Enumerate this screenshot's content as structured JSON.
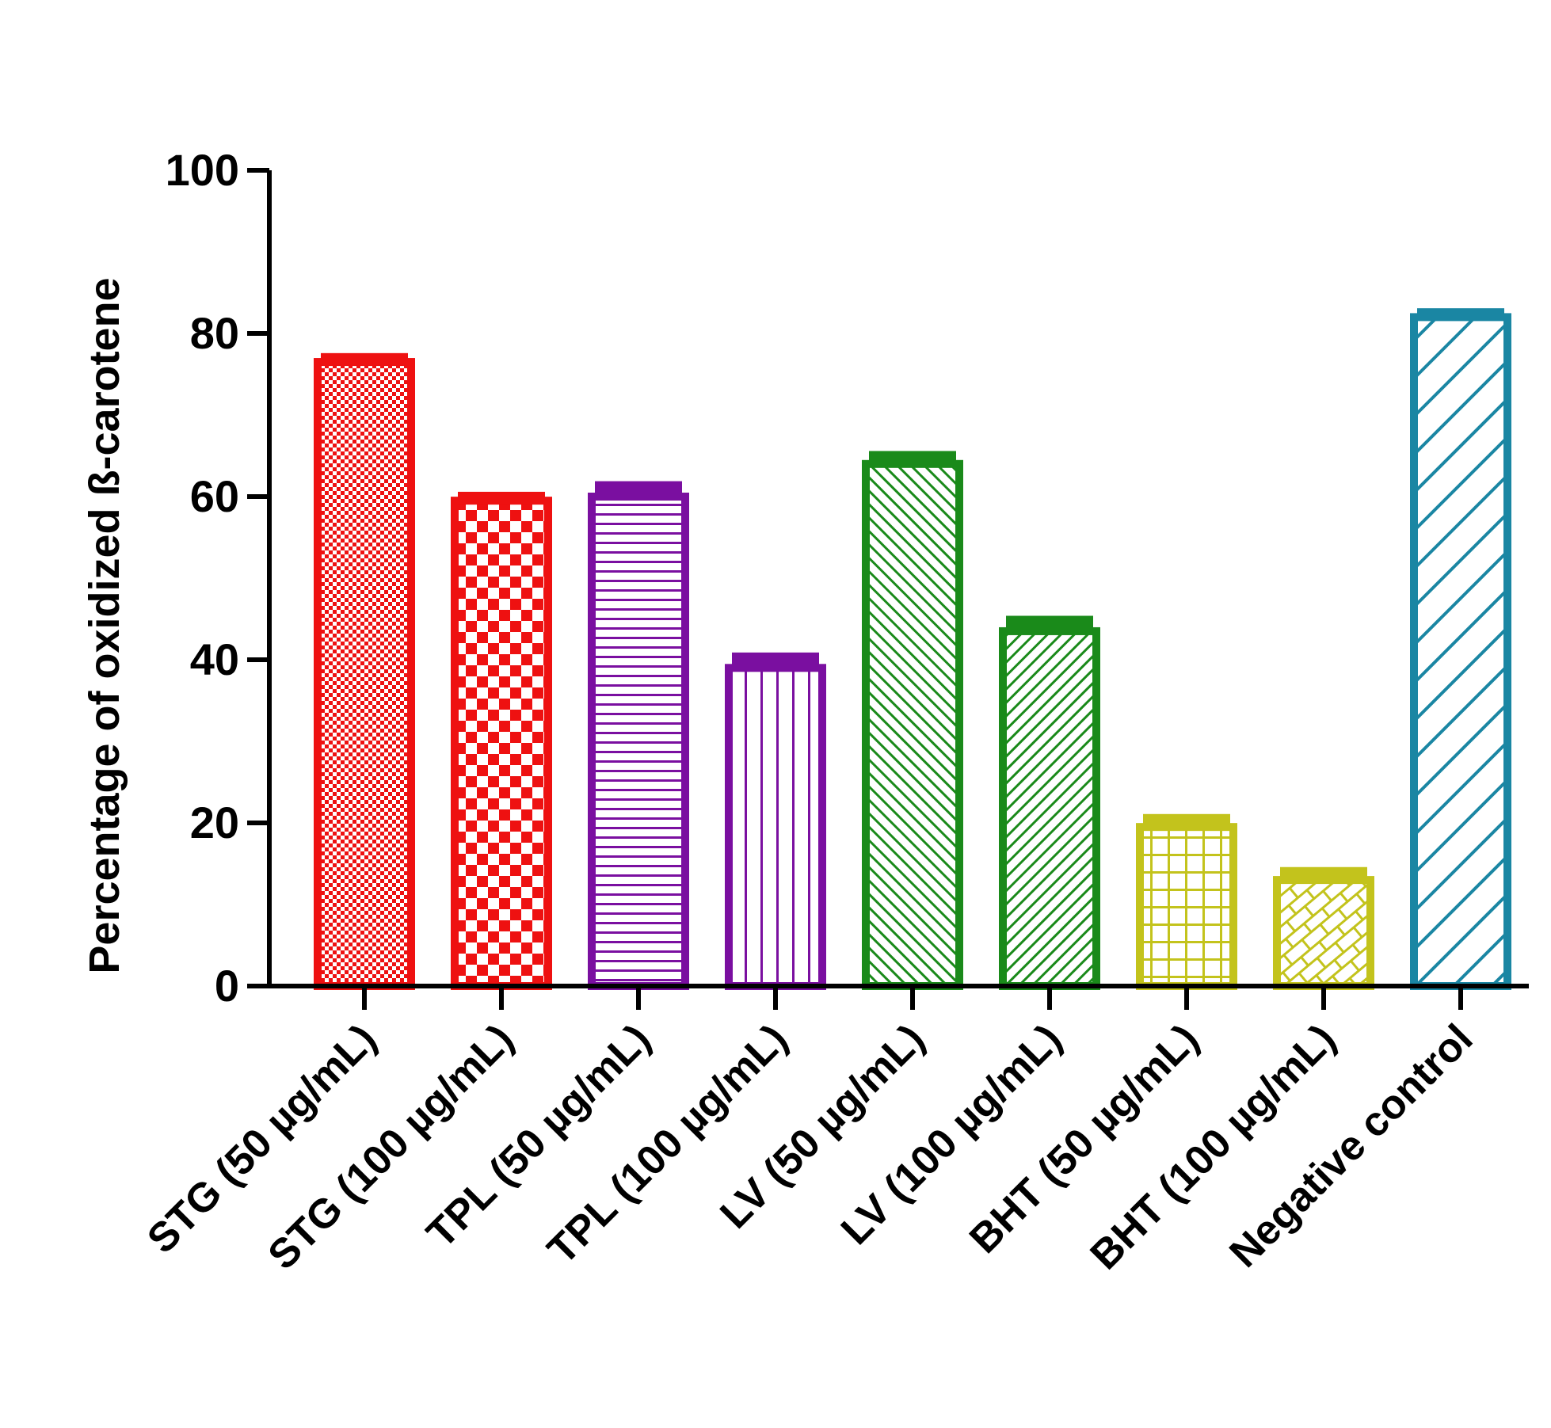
{
  "chart_data": {
    "type": "bar",
    "title": "",
    "xlabel": "",
    "ylabel": "Percentage of oxidized ß-carotene",
    "ylim": [
      0,
      100
    ],
    "yticks": [
      0,
      20,
      40,
      60,
      80,
      100
    ],
    "grid": false,
    "legend": "none",
    "categories": [
      "STG (50 µg/mL)",
      "STG (100 µg/mL)",
      "TPL (50 µg/mL)",
      "TPL (100 µg/mL)",
      "LV (50 µg/mL)",
      "LV (100 µg/mL)",
      "BHT (50 µg/mL)",
      "BHT (100 µg/mL)",
      "Negative control"
    ],
    "values": [
      76.5,
      59.5,
      60,
      39,
      64,
      43.5,
      19.5,
      13,
      82
    ],
    "errors": [
      0.7,
      0.7,
      1.5,
      1.5,
      1.2,
      1.5,
      1.2,
      1.2,
      0.7
    ],
    "colors": [
      "#ee1111",
      "#ee1111",
      "#7a0fa0",
      "#7a0fa0",
      "#1a8a1a",
      "#1a8a1a",
      "#c3c31c",
      "#c3c31c",
      "#1a86a3"
    ],
    "patterns": [
      "fine-check",
      "check",
      "hlines",
      "vlines",
      "diag-dense",
      "diag-back",
      "grid",
      "brick",
      "diag-back-wide"
    ]
  }
}
